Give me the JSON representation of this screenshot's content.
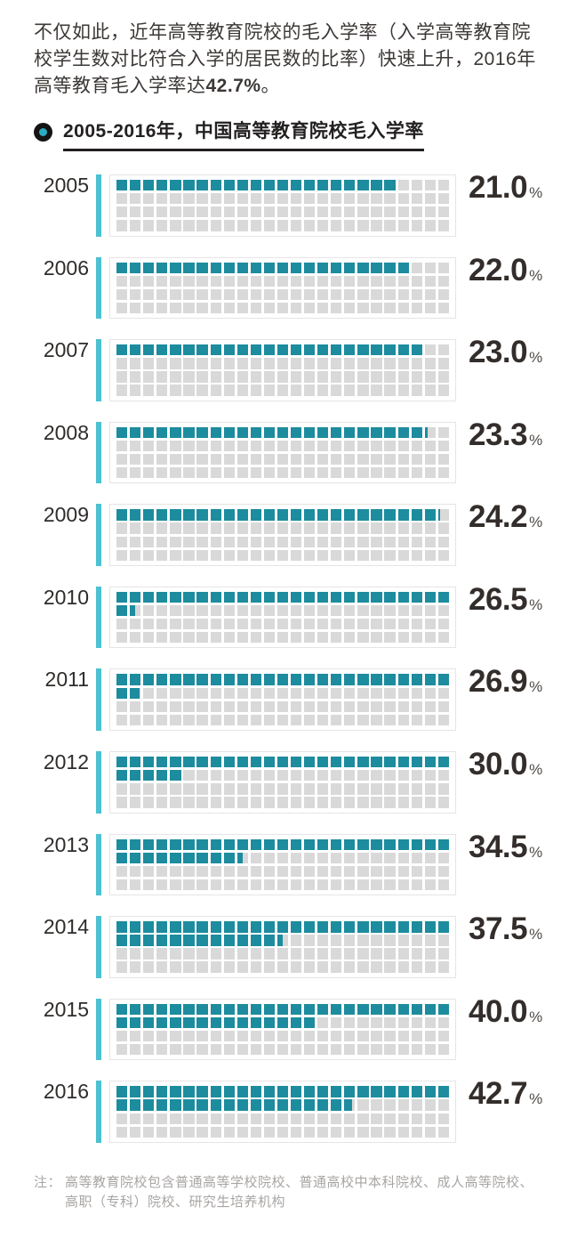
{
  "intro": {
    "text_before": "不仅如此，近年高等教育院校的毛入学率（入学高等教育院校学生数对比符合入学的居民数的比率）快速上升，2016年高等教育毛入学率达",
    "highlight": "42.7%",
    "text_after": "。"
  },
  "chart_data": {
    "type": "waffle-bar",
    "title": "2005-2016年，中国高等教育院校毛入学率",
    "unit": "%",
    "grid": {
      "rows": 4,
      "cols": 25,
      "cell_value_percent": 1
    },
    "categories": [
      "2005",
      "2006",
      "2007",
      "2008",
      "2009",
      "2010",
      "2011",
      "2012",
      "2013",
      "2014",
      "2015",
      "2016"
    ],
    "values": [
      21.0,
      22.0,
      23.0,
      23.3,
      24.2,
      26.5,
      26.9,
      30.0,
      34.5,
      37.5,
      40.0,
      42.7
    ],
    "labels": [
      "21.0",
      "22.0",
      "23.0",
      "23.3",
      "24.2",
      "26.5",
      "26.9",
      "30.0",
      "34.5",
      "37.5",
      "40.0",
      "42.7"
    ],
    "legend_position": "none",
    "value_label_position": "right"
  },
  "note": {
    "label": "注：",
    "text": "高等教育院校包含普通高等学校院校、普通高校中本科院校、成人高等院校、高职（专科）院校、研究生培养机构"
  },
  "colors": {
    "teal_fill": "#1d8c9e",
    "accent_bar": "#4cc1d2",
    "empty_cell": "#d9d9d9",
    "box_border": "#e5e5e5",
    "text_dark": "#332f2d",
    "note_gray": "#a8a5a3",
    "bullet_outer": "#151313",
    "bullet_inner": "#2aabc0"
  }
}
